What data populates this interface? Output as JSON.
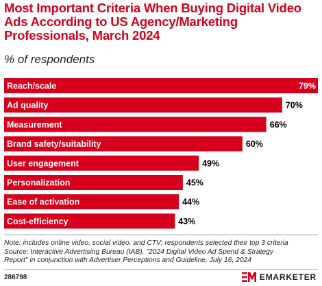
{
  "header": {
    "title": "Most Important Criteria When Buying Digital Video Ads According to US Agency/Marketing Professionals, March 2024",
    "subtitle": "% of respondents"
  },
  "chart_data": {
    "type": "bar",
    "orientation": "horizontal",
    "title": "Most Important Criteria When Buying Digital Video Ads According to US Agency/Marketing Professionals, March 2024",
    "subtitle": "% of respondents",
    "categories": [
      "Reach/scale",
      "Ad quality",
      "Measurement",
      "Brand safety/suitability",
      "User engagement",
      "Personalization",
      "Ease of activation",
      "Cost-efficiency"
    ],
    "values": [
      79,
      70,
      66,
      60,
      49,
      45,
      44,
      43
    ],
    "value_labels": [
      "79%",
      "70%",
      "66%",
      "60%",
      "49%",
      "45%",
      "44%",
      "43%"
    ],
    "xlim": [
      0,
      79
    ],
    "bar_color": "#d6001c",
    "grid": false,
    "legend": "none"
  },
  "footer": {
    "note_line1": "Note: includes online video, social video, and CTV; respondents selected their top 3 criteria",
    "note_line2": "Source: Interactive Advertising Bureau (IAB), \"2024 Digital Video Ad Spend & Strategy",
    "note_line3": "Report\" in conjunction with Advertiser Perceptions and Guideline, July 16, 2024",
    "chart_id": "286798",
    "brand_name": "EMARKETER",
    "brand_icon": "em-logo-icon"
  }
}
